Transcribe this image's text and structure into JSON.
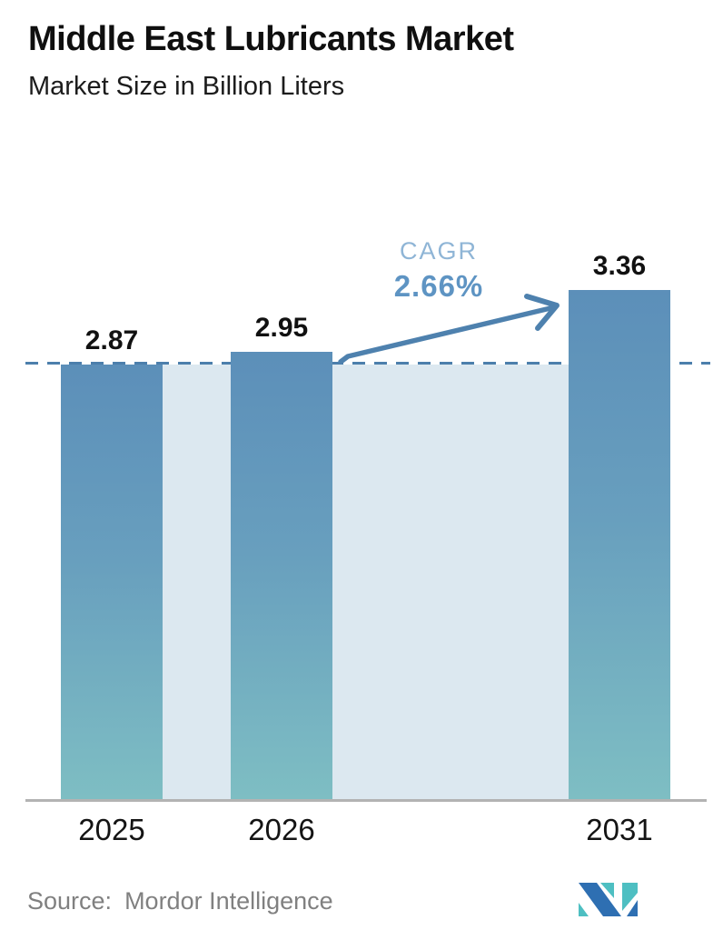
{
  "header": {
    "title": "Middle East Lubricants Market",
    "subtitle": "Market Size in Billion Liters"
  },
  "chart_data": {
    "type": "bar",
    "categories": [
      "2025",
      "2026",
      "2031"
    ],
    "values": [
      2.87,
      2.95,
      3.36
    ],
    "value_labels": [
      "2.87",
      "2.95",
      "3.36"
    ],
    "title": "Middle East Lubricants Market",
    "xlabel": "",
    "ylabel": "Market Size in Billion Liters",
    "ylim": [
      0,
      3.6
    ],
    "grid": "off",
    "legend": "none",
    "annotations": {
      "cagr_label": "CAGR",
      "cagr_value": "2.66%",
      "dashed_reference_value": 2.87,
      "arrow": "from 2026 bar top to 2031 bar top"
    },
    "colors": {
      "bar_gradient_top": "#5C8FB9",
      "bar_gradient_bottom": "#7EBEC3",
      "reference_band": "#DCE8F0",
      "dashed_line": "#4C7FAC",
      "arrow": "#4E81AE",
      "cagr_label_text": "#8FB5D6",
      "cagr_value_text": "#5E94C3",
      "axis_line": "#B3B3B3",
      "value_text": "#111111",
      "source_text": "#808080"
    }
  },
  "footer": {
    "source_label": "Source:",
    "source_name": "Mordor Intelligence",
    "logo_icon": "mordor-intelligence-logo",
    "logo_colors": {
      "blue": "#2E6FB2",
      "teal": "#4EBFC2"
    }
  }
}
